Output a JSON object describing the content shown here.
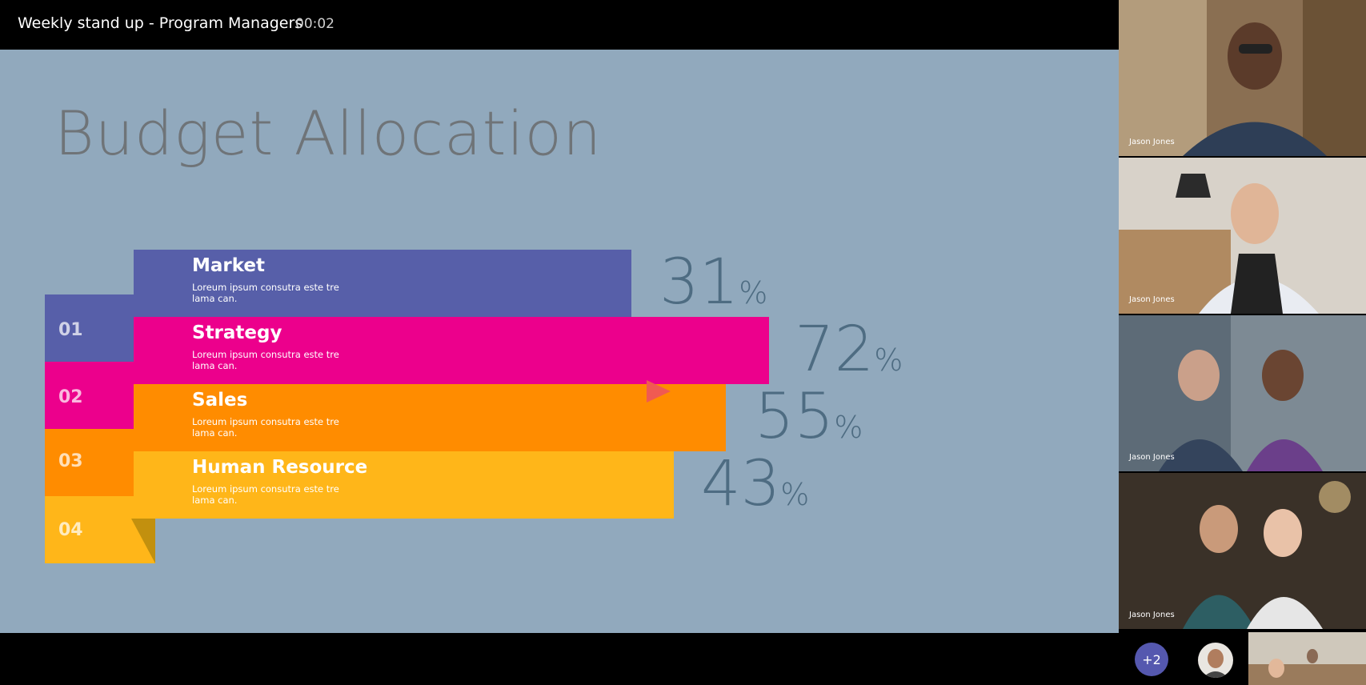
{
  "meeting": {
    "title": "Weekly stand up - Program Managers",
    "timer": "00:02"
  },
  "slide": {
    "title": "Budget Allocation",
    "rows": [
      {
        "number": "01",
        "label": "Market",
        "desc": "Loreum ipsum consutra este tre lama can.",
        "percent": 31,
        "pct_text": "31",
        "color": "#575fa9"
      },
      {
        "number": "02",
        "label": "Strategy",
        "desc": "Loreum ipsum consutra este tre lama can.",
        "percent": 72,
        "pct_text": "72",
        "color": "#ec008c"
      },
      {
        "number": "03",
        "label": "Sales",
        "desc": "Loreum ipsum consutra este tre lama can.",
        "percent": 55,
        "pct_text": "55",
        "color": "#ff8c00"
      },
      {
        "number": "04",
        "label": "Human Resource",
        "desc": "Loreum ipsum consutra este tre lama can.",
        "percent": 43,
        "pct_text": "43",
        "color": "#ffb619"
      }
    ],
    "percent_symbol": "%"
  },
  "participants": [
    {
      "name": "Jason Jones"
    },
    {
      "name": "Jason Jones"
    },
    {
      "name": "Jason Jones"
    },
    {
      "name": "Jason Jones"
    }
  ],
  "overflow": {
    "label": "+2"
  },
  "colors": {
    "stage_bg": "#91a9bd",
    "accent": "#5558af",
    "pointer": "#f05a52"
  }
}
